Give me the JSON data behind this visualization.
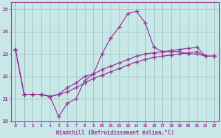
{
  "xlabel": "Windchill (Refroidissement éolien,°C)",
  "bg_color": "#c8e8e8",
  "line_color": "#993399",
  "grid_color": "#99bbbb",
  "xlim": [
    -0.5,
    23.5
  ],
  "ylim": [
    20.0,
    25.3
  ],
  "yticks": [
    20,
    21,
    22,
    23,
    24,
    25
  ],
  "xticks": [
    0,
    1,
    2,
    3,
    4,
    5,
    6,
    7,
    8,
    9,
    10,
    11,
    12,
    13,
    14,
    15,
    16,
    17,
    18,
    19,
    20,
    21,
    22,
    23
  ],
  "line1_x": [
    0,
    1,
    2,
    3,
    4,
    5,
    6,
    7,
    8,
    9,
    10,
    11,
    12,
    13,
    14,
    15,
    16,
    17,
    18,
    19,
    20,
    21,
    22,
    23
  ],
  "line1_y": [
    23.2,
    21.2,
    21.2,
    21.2,
    21.1,
    20.2,
    20.8,
    21.0,
    21.8,
    22.1,
    23.0,
    23.7,
    24.2,
    24.8,
    24.9,
    24.4,
    23.3,
    23.1,
    23.1,
    23.1,
    23.0,
    23.0,
    22.9,
    22.9
  ],
  "line2_x": [
    0,
    1,
    2,
    3,
    4,
    5,
    6,
    7,
    8,
    9,
    10,
    11,
    12,
    13,
    14,
    15,
    16,
    17,
    18,
    19,
    20,
    21,
    22,
    23
  ],
  "line2_y": [
    23.2,
    21.2,
    21.2,
    21.2,
    21.1,
    21.2,
    21.5,
    21.7,
    22.0,
    22.1,
    22.3,
    22.45,
    22.6,
    22.75,
    22.9,
    23.0,
    23.05,
    23.1,
    23.15,
    23.2,
    23.25,
    23.3,
    22.9,
    22.9
  ],
  "line3_x": [
    0,
    1,
    2,
    3,
    4,
    5,
    6,
    7,
    8,
    9,
    10,
    11,
    12,
    13,
    14,
    15,
    16,
    17,
    18,
    19,
    20,
    21,
    22,
    23
  ],
  "line3_y": [
    23.2,
    21.2,
    21.2,
    21.2,
    21.1,
    21.2,
    21.3,
    21.5,
    21.7,
    21.9,
    22.05,
    22.2,
    22.35,
    22.5,
    22.65,
    22.75,
    22.85,
    22.9,
    22.95,
    23.0,
    23.05,
    23.1,
    22.9,
    22.9
  ]
}
